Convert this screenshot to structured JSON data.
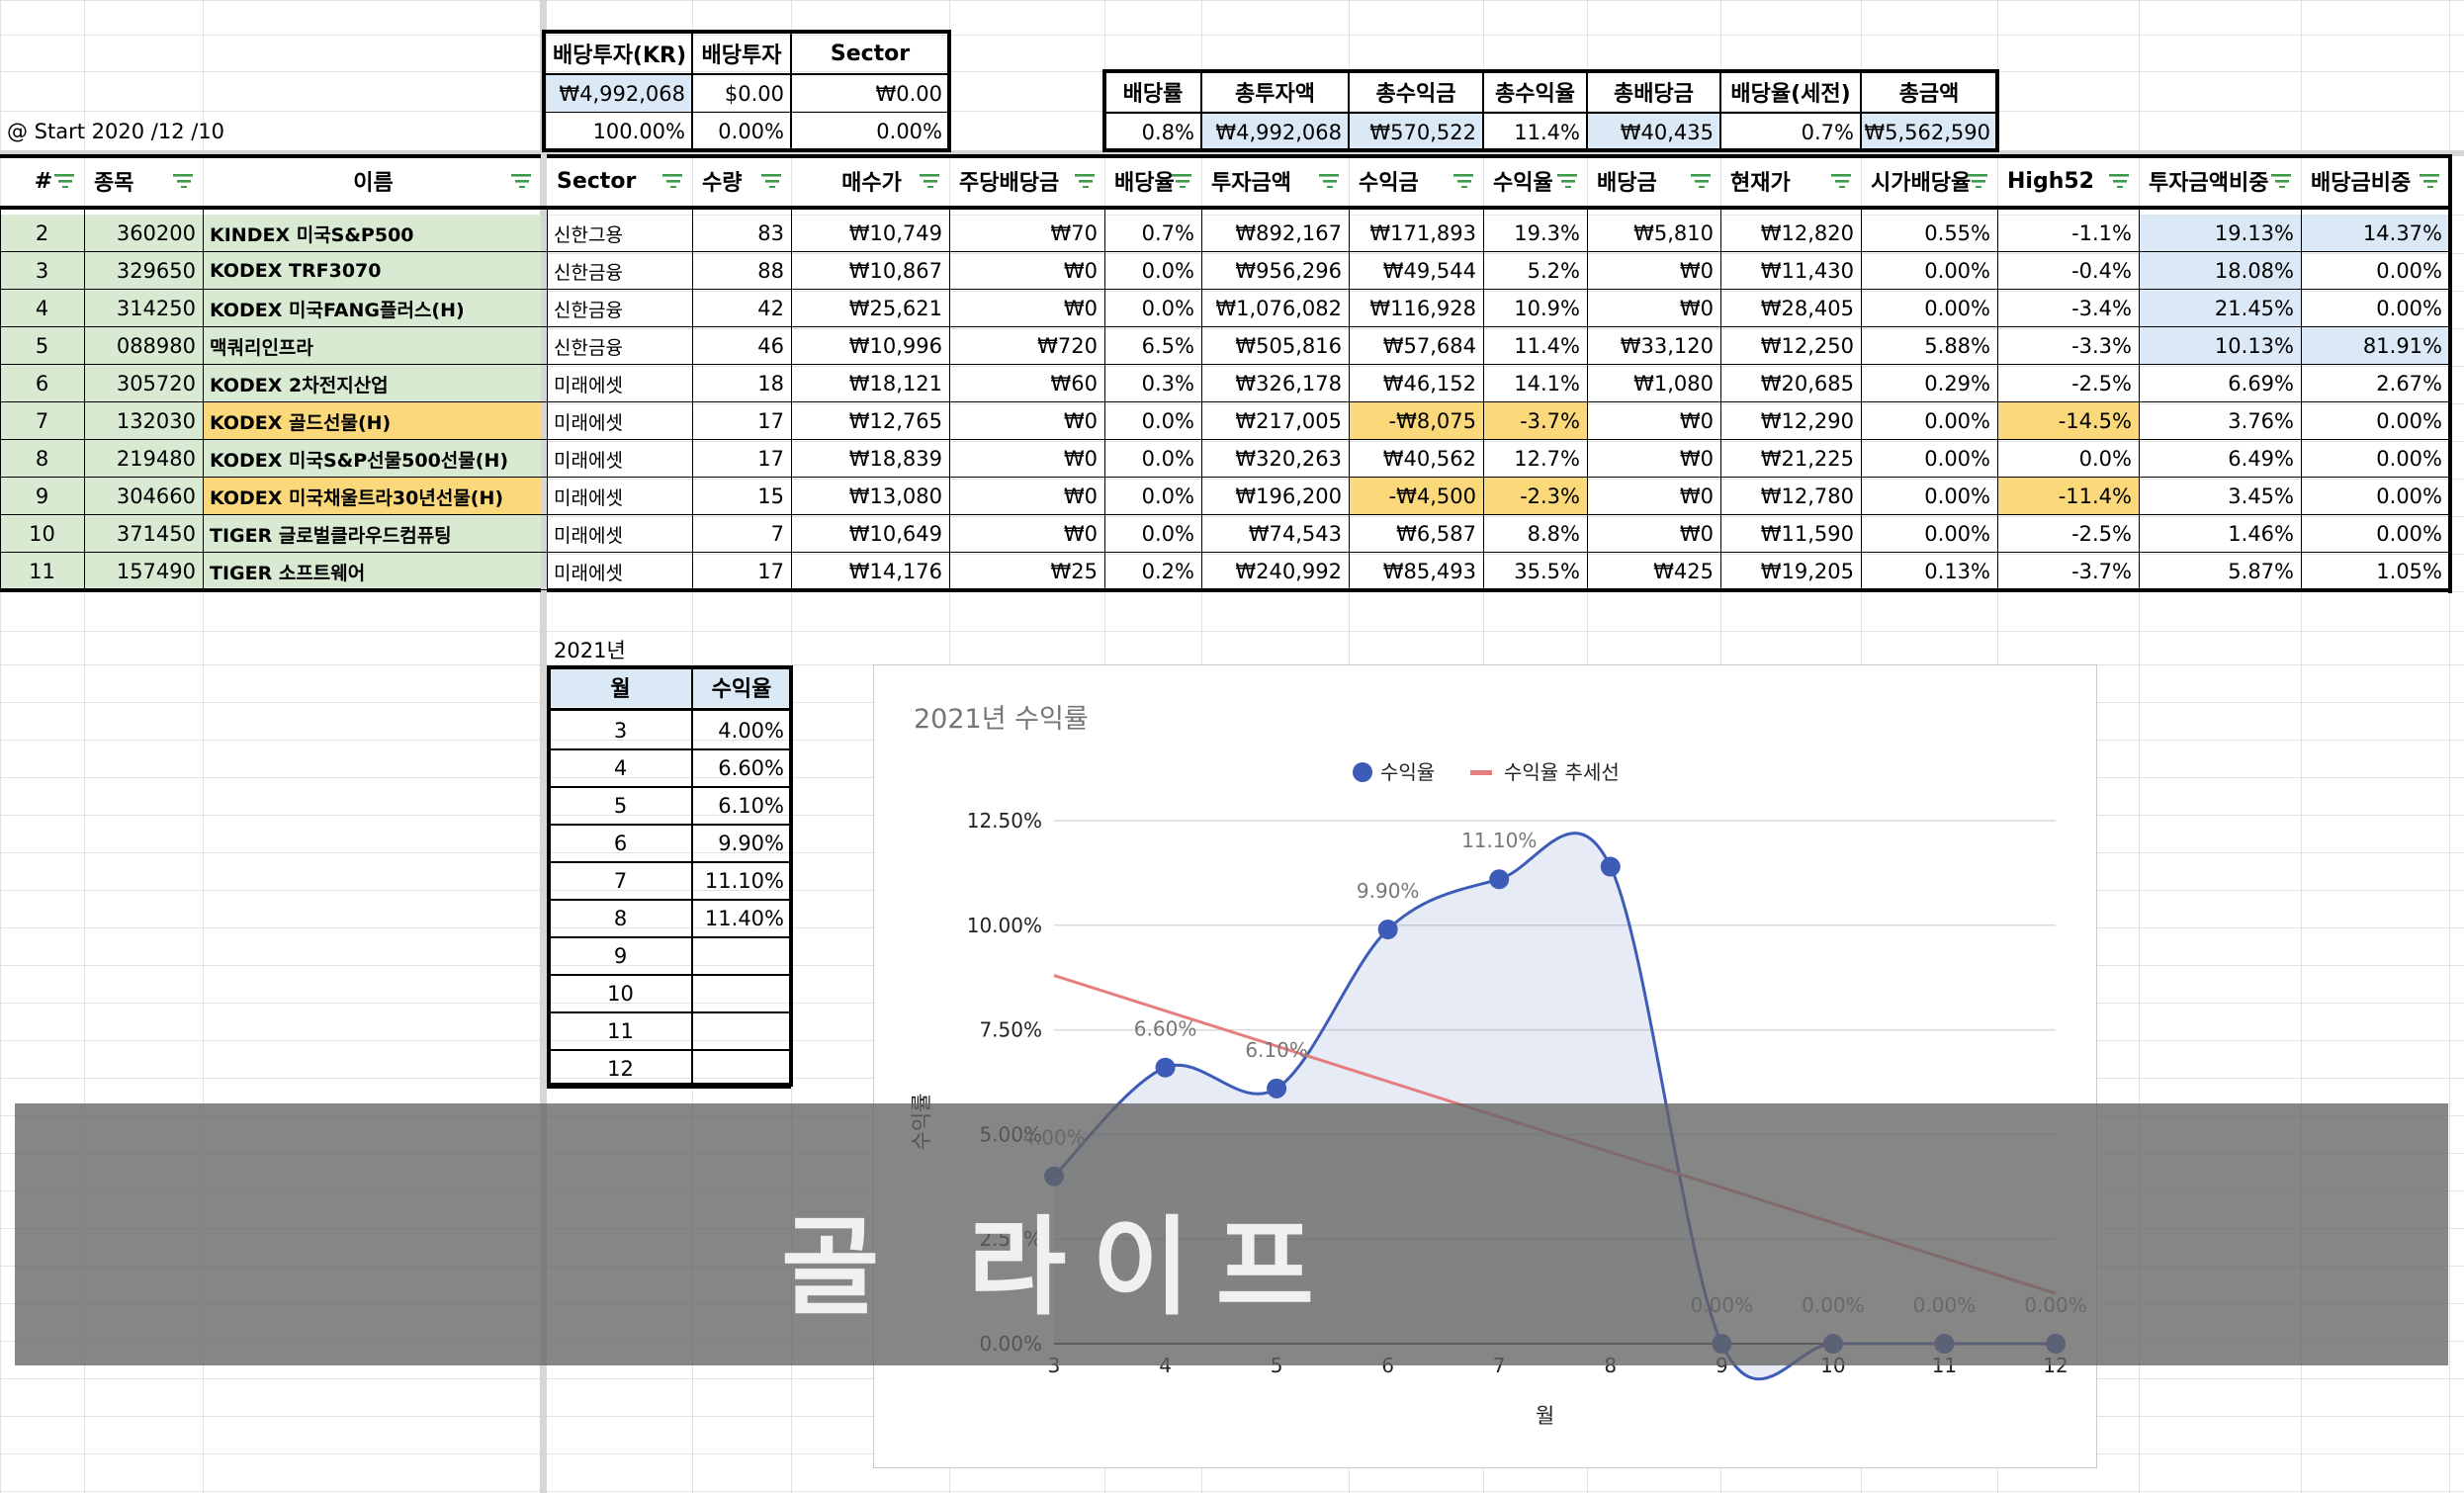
{
  "summary": {
    "kr_header": "배당투자(KR)",
    "div_header": "배당투자",
    "sector_header": "Sector",
    "kr_amount": "₩4,992,068",
    "div_amount": "$0.00",
    "sector_amount": "₩0.00",
    "kr_pct": "100.00%",
    "div_pct": "0.00%",
    "sector_pct": "0.00%",
    "start_label": "@ Start 2020 /12 /10"
  },
  "totals": {
    "headers": [
      "배당률",
      "총투자액",
      "총수익금",
      "총수익율",
      "총배당금",
      "배당율(세전)",
      "총금액"
    ],
    "values": [
      "0.8%",
      "₩4,992,068",
      "₩570,522",
      "11.4%",
      "₩40,435",
      "0.7%",
      "₩5,562,590"
    ]
  },
  "table": {
    "headers": [
      "#",
      "종목",
      "이름",
      "Sector",
      "수량",
      "매수가",
      "주당배당금",
      "배당율",
      "투자금액",
      "수익금",
      "수익율",
      "배당금",
      "현재가",
      "시가배당율",
      "High52",
      "투자금액비중",
      "배당금비중"
    ],
    "rows": [
      [
        "2",
        "360200",
        "KINDEX 미국S&P500",
        "신한그용",
        "83",
        "₩10,749",
        "₩70",
        "0.7%",
        "₩892,167",
        "₩171,893",
        "19.3%",
        "₩5,810",
        "₩12,820",
        "0.55%",
        "-1.1%",
        "19.13%",
        "14.37%"
      ],
      [
        "3",
        "329650",
        "KODEX TRF3070",
        "신한금융",
        "88",
        "₩10,867",
        "₩0",
        "0.0%",
        "₩956,296",
        "₩49,544",
        "5.2%",
        "₩0",
        "₩11,430",
        "0.00%",
        "-0.4%",
        "18.08%",
        "0.00%"
      ],
      [
        "4",
        "314250",
        "KODEX 미국FANG플러스(H)",
        "신한금융",
        "42",
        "₩25,621",
        "₩0",
        "0.0%",
        "₩1,076,082",
        "₩116,928",
        "10.9%",
        "₩0",
        "₩28,405",
        "0.00%",
        "-3.4%",
        "21.45%",
        "0.00%"
      ],
      [
        "5",
        "088980",
        "맥쿼리인프라",
        "신한금융",
        "46",
        "₩10,996",
        "₩720",
        "6.5%",
        "₩505,816",
        "₩57,684",
        "11.4%",
        "₩33,120",
        "₩12,250",
        "5.88%",
        "-3.3%",
        "10.13%",
        "81.91%"
      ],
      [
        "6",
        "305720",
        "KODEX 2차전지산업",
        "미래에셋",
        "18",
        "₩18,121",
        "₩60",
        "0.3%",
        "₩326,178",
        "₩46,152",
        "14.1%",
        "₩1,080",
        "₩20,685",
        "0.29%",
        "-2.5%",
        "6.69%",
        "2.67%"
      ],
      [
        "7",
        "132030",
        "KODEX 골드선물(H)",
        "미래에셋",
        "17",
        "₩12,765",
        "₩0",
        "0.0%",
        "₩217,005",
        "-₩8,075",
        "-3.7%",
        "₩0",
        "₩12,290",
        "0.00%",
        "-14.5%",
        "3.76%",
        "0.00%"
      ],
      [
        "8",
        "219480",
        "KODEX 미국S&P선물500선물(H)",
        "미래에셋",
        "17",
        "₩18,839",
        "₩0",
        "0.0%",
        "₩320,263",
        "₩40,562",
        "12.7%",
        "₩0",
        "₩21,225",
        "0.00%",
        "0.0%",
        "6.49%",
        "0.00%"
      ],
      [
        "9",
        "304660",
        "KODEX 미국채울트라30년선물(H)",
        "미래에셋",
        "15",
        "₩13,080",
        "₩0",
        "0.0%",
        "₩196,200",
        "-₩4,500",
        "-2.3%",
        "₩0",
        "₩12,780",
        "0.00%",
        "-11.4%",
        "3.45%",
        "0.00%"
      ],
      [
        "10",
        "371450",
        "TIGER 글로벌클라우드컴퓨팅",
        "미래에셋",
        "7",
        "₩10,649",
        "₩0",
        "0.0%",
        "₩74,543",
        "₩6,587",
        "8.8%",
        "₩0",
        "₩11,590",
        "0.00%",
        "-2.5%",
        "1.46%",
        "0.00%"
      ],
      [
        "11",
        "157490",
        "TIGER 소프트웨어",
        "미래에셋",
        "17",
        "₩14,176",
        "₩25",
        "0.2%",
        "₩240,992",
        "₩85,493",
        "35.5%",
        "₩425",
        "₩19,205",
        "0.13%",
        "-3.7%",
        "5.87%",
        "1.05%"
      ]
    ]
  },
  "monthly": {
    "year_label": "2021년",
    "headers": [
      "월",
      "수익율"
    ],
    "rows": [
      [
        "3",
        "4.00%"
      ],
      [
        "4",
        "6.60%"
      ],
      [
        "5",
        "6.10%"
      ],
      [
        "6",
        "9.90%"
      ],
      [
        "7",
        "11.10%"
      ],
      [
        "8",
        "11.40%"
      ],
      [
        "9",
        ""
      ],
      [
        "10",
        ""
      ],
      [
        "11",
        ""
      ],
      [
        "12",
        ""
      ]
    ]
  },
  "colors": {
    "green_fill": "#d9ead3",
    "blue_fill": "#dbe8f5",
    "yellow_fill": "#fbd879",
    "line": "#3d5cb8",
    "trend": "#e57f7f"
  },
  "watermark": "골 라이프",
  "chart_data": {
    "type": "line",
    "title": "2021년 수익률",
    "xlabel": "월",
    "ylabel": "수익률",
    "x": [
      3,
      4,
      5,
      6,
      7,
      8,
      9,
      10,
      11,
      12
    ],
    "series": [
      {
        "name": "수익율",
        "values": [
          4.0,
          6.6,
          6.1,
          9.9,
          11.1,
          11.4,
          0.0,
          0.0,
          0.0,
          0.0
        ]
      }
    ],
    "data_labels": [
      "4.00%",
      "6.60%",
      "6.10%",
      "9.90%",
      "11.10%",
      "",
      "0.00%",
      "0.00%",
      "0.00%",
      "0.00%"
    ],
    "trendline": {
      "name": "수익율 추세선",
      "start": 8.8,
      "end": 1.2
    },
    "yticks": [
      "0.00%",
      "2.50%",
      "5.00%",
      "7.50%",
      "10.00%",
      "12.50%"
    ],
    "ylim": [
      0,
      12.5
    ],
    "xlim": [
      3,
      12
    ],
    "legend": "top",
    "grid": true
  }
}
